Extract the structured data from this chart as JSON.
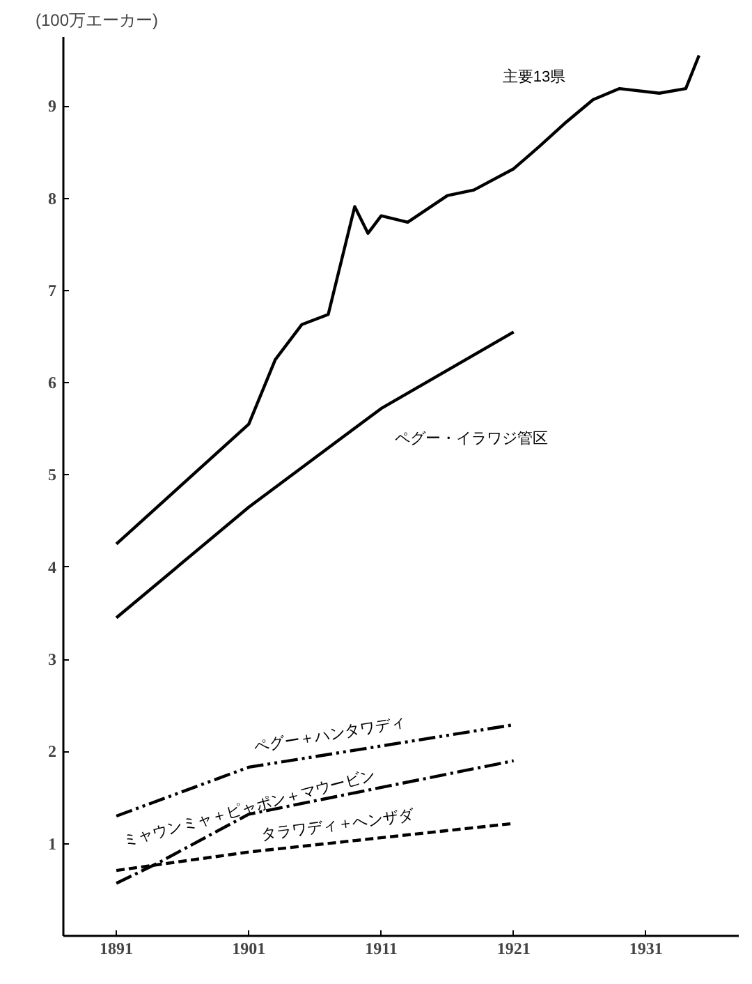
{
  "chart_data": {
    "type": "line",
    "ylabel": "(100万エーカー)",
    "xlim": [
      1887,
      1938
    ],
    "ylim": [
      0,
      9.75
    ],
    "xticks": [
      1891,
      1901,
      1911,
      1921,
      1931
    ],
    "yticks": [
      1,
      2,
      3,
      4,
      5,
      6,
      7,
      8,
      9
    ],
    "grid": false,
    "series": [
      {
        "name": "主要13県",
        "color": "#000000",
        "line_style": "solid",
        "x": [
          1891,
          1901,
          1903,
          1905,
          1907,
          1909,
          1910,
          1911,
          1913,
          1916,
          1918,
          1921,
          1923,
          1925,
          1927,
          1929,
          1932,
          1934,
          1935
        ],
        "values": [
          4.25,
          5.55,
          6.25,
          6.63,
          6.74,
          7.91,
          7.62,
          7.81,
          7.74,
          8.03,
          8.09,
          8.32,
          8.57,
          8.83,
          9.07,
          9.19,
          9.14,
          9.19,
          9.55
        ]
      },
      {
        "name": "ペグー・イラワジ管区",
        "color": "#000000",
        "line_style": "solid",
        "x": [
          1891,
          1901,
          1911,
          1921
        ],
        "values": [
          3.45,
          4.65,
          5.72,
          6.55
        ]
      },
      {
        "name": "ペグー＋ハンタワディ",
        "color": "#000000",
        "line_style": "dashdotdot",
        "x": [
          1891,
          1901,
          1921
        ],
        "values": [
          1.3,
          1.83,
          2.29
        ]
      },
      {
        "name": "ミャウンミャ＋ピャポン＋マウービン",
        "color": "#000000",
        "line_style": "dashdot",
        "x": [
          1891,
          1894,
          1901,
          1921
        ],
        "values": [
          0.57,
          0.78,
          1.32,
          1.9
        ]
      },
      {
        "name": "タラワディ＋ヘンザダ",
        "color": "#000000",
        "line_style": "dashed",
        "x": [
          1891,
          1901,
          1921
        ],
        "values": [
          0.71,
          0.91,
          1.22
        ]
      }
    ]
  }
}
